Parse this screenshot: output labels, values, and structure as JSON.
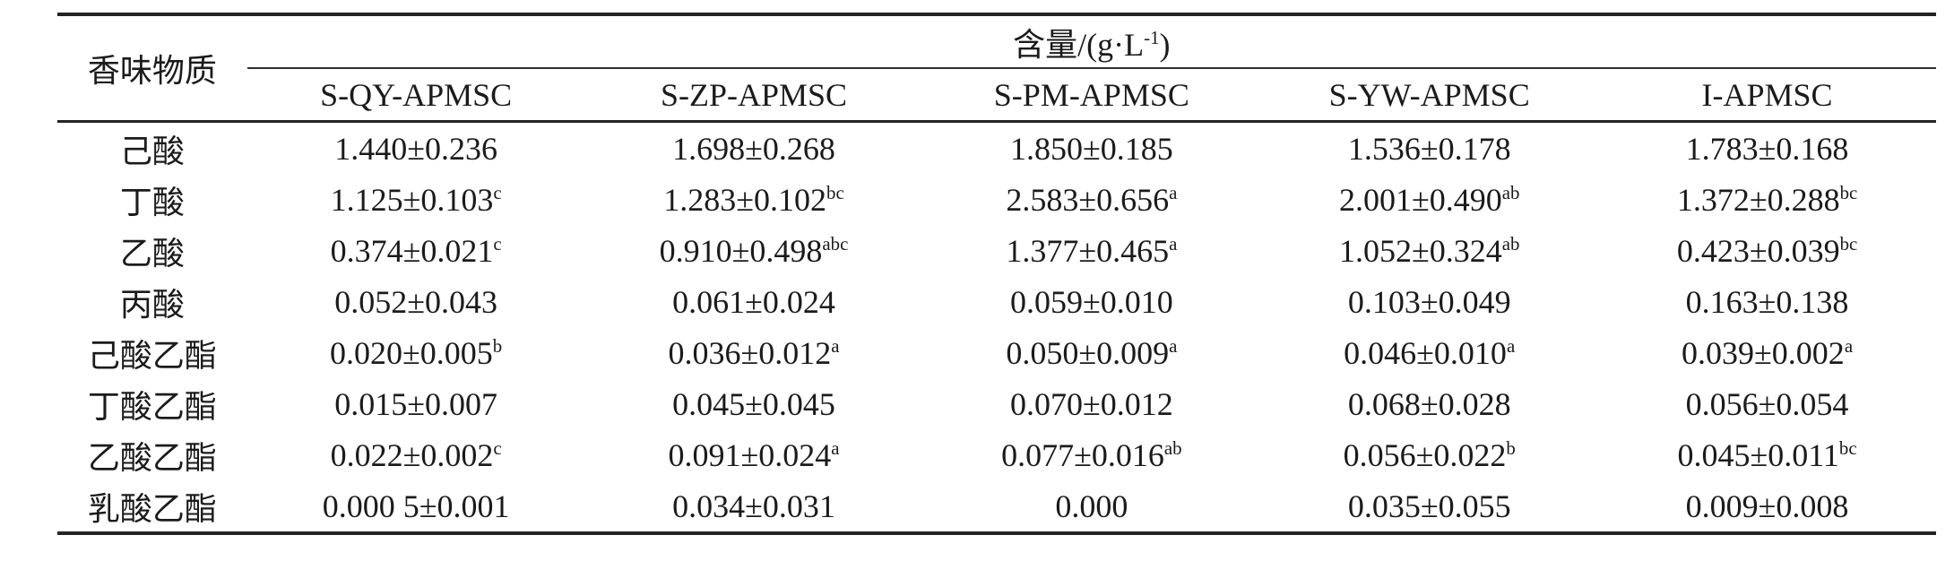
{
  "colors": {
    "background": "#ffffff",
    "text": "#1b1b1b",
    "rule": "#242424"
  },
  "table": {
    "row_header_label": "香味物质",
    "group_header": {
      "prefix": "含量/(g·L",
      "superscript": "-1",
      "suffix": ")"
    },
    "columns": [
      "S-QY-APMSC",
      "S-ZP-APMSC",
      "S-PM-APMSC",
      "S-YW-APMSC",
      "I-APMSC"
    ],
    "rows": [
      {
        "label": "己酸",
        "values": [
          {
            "v": "1.440±0.236",
            "sup": ""
          },
          {
            "v": "1.698±0.268",
            "sup": ""
          },
          {
            "v": "1.850±0.185",
            "sup": ""
          },
          {
            "v": "1.536±0.178",
            "sup": ""
          },
          {
            "v": "1.783±0.168",
            "sup": ""
          }
        ]
      },
      {
        "label": "丁酸",
        "values": [
          {
            "v": "1.125±0.103",
            "sup": "c"
          },
          {
            "v": "1.283±0.102",
            "sup": "bc"
          },
          {
            "v": "2.583±0.656",
            "sup": "a"
          },
          {
            "v": "2.001±0.490",
            "sup": "ab"
          },
          {
            "v": "1.372±0.288",
            "sup": "bc"
          }
        ]
      },
      {
        "label": "乙酸",
        "values": [
          {
            "v": "0.374±0.021",
            "sup": "c"
          },
          {
            "v": "0.910±0.498",
            "sup": "abc"
          },
          {
            "v": "1.377±0.465",
            "sup": "a"
          },
          {
            "v": "1.052±0.324",
            "sup": "ab"
          },
          {
            "v": "0.423±0.039",
            "sup": "bc"
          }
        ]
      },
      {
        "label": "丙酸",
        "values": [
          {
            "v": "0.052±0.043",
            "sup": ""
          },
          {
            "v": "0.061±0.024",
            "sup": ""
          },
          {
            "v": "0.059±0.010",
            "sup": ""
          },
          {
            "v": "0.103±0.049",
            "sup": ""
          },
          {
            "v": "0.163±0.138",
            "sup": ""
          }
        ]
      },
      {
        "label": "己酸乙酯",
        "values": [
          {
            "v": "0.020±0.005",
            "sup": "b"
          },
          {
            "v": "0.036±0.012",
            "sup": "a"
          },
          {
            "v": "0.050±0.009",
            "sup": "a"
          },
          {
            "v": "0.046±0.010",
            "sup": "a"
          },
          {
            "v": "0.039±0.002",
            "sup": "a"
          }
        ]
      },
      {
        "label": "丁酸乙酯",
        "values": [
          {
            "v": "0.015±0.007",
            "sup": ""
          },
          {
            "v": "0.045±0.045",
            "sup": ""
          },
          {
            "v": "0.070±0.012",
            "sup": ""
          },
          {
            "v": "0.068±0.028",
            "sup": ""
          },
          {
            "v": "0.056±0.054",
            "sup": ""
          }
        ]
      },
      {
        "label": "乙酸乙酯",
        "values": [
          {
            "v": "0.022±0.002",
            "sup": "c"
          },
          {
            "v": "0.091±0.024",
            "sup": "a"
          },
          {
            "v": "0.077±0.016",
            "sup": "ab"
          },
          {
            "v": "0.056±0.022",
            "sup": "b"
          },
          {
            "v": "0.045±0.011",
            "sup": "bc"
          }
        ]
      },
      {
        "label": "乳酸乙酯",
        "values": [
          {
            "v": "0.000 5±0.001",
            "sup": ""
          },
          {
            "v": "0.034±0.031",
            "sup": ""
          },
          {
            "v": "0.000",
            "sup": ""
          },
          {
            "v": "0.035±0.055",
            "sup": ""
          },
          {
            "v": "0.009±0.008",
            "sup": ""
          }
        ]
      }
    ]
  }
}
